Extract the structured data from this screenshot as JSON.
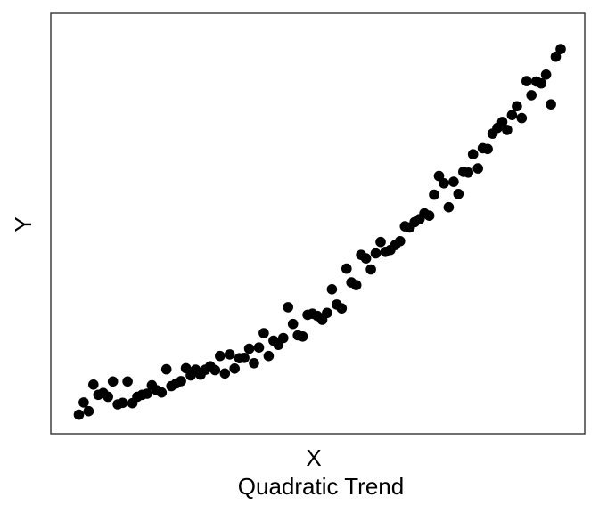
{
  "chart_data": {
    "type": "scatter",
    "title": "",
    "caption": "Quadratic Trend",
    "xlabel": "X",
    "ylabel": "Y",
    "xlim": [
      0,
      100
    ],
    "ylim": [
      0,
      100
    ],
    "grid": false,
    "legend": "none",
    "marker_color": "#000000",
    "series": [
      {
        "x": [
          1,
          2,
          3,
          4,
          5,
          6,
          7,
          8,
          9,
          10,
          11,
          12,
          13,
          14,
          15,
          16,
          17,
          18,
          19,
          20,
          21,
          22,
          23,
          24,
          25,
          26,
          27,
          28,
          29,
          30,
          31,
          32,
          33,
          34,
          35,
          36,
          37,
          38,
          39,
          40,
          41,
          42,
          43,
          44,
          45,
          46,
          47,
          48,
          49,
          50,
          51,
          52,
          53,
          54,
          55,
          56,
          57,
          58,
          59,
          60,
          61,
          62,
          63,
          64,
          65,
          66,
          67,
          68,
          69,
          70,
          71,
          72,
          73,
          74,
          75,
          76,
          77,
          78,
          79,
          80,
          81,
          82,
          83,
          84,
          85,
          86,
          87,
          88,
          89,
          90,
          91,
          92,
          93,
          94,
          95,
          96,
          97,
          98,
          99,
          100
        ],
        "y": [
          0.1,
          3.3,
          1.0,
          8.0,
          5.3,
          5.8,
          4.8,
          8.8,
          2.8,
          3.2,
          8.8,
          3.1,
          4.8,
          5.3,
          5.6,
          7.8,
          6.5,
          5.9,
          12.0,
          7.6,
          8.3,
          8.9,
          12.3,
          10.4,
          11.9,
          10.6,
          11.9,
          12.8,
          11.8,
          15.5,
          10.9,
          15.9,
          12.2,
          14.9,
          15.0,
          17.4,
          13.6,
          17.7,
          21.5,
          15.5,
          19.5,
          18.4,
          20.2,
          28.3,
          23.9,
          20.9,
          20.6,
          26.3,
          26.6,
          26.0,
          25.0,
          26.8,
          33.0,
          29.0,
          28.0,
          38.4,
          34.8,
          34.1,
          42.0,
          41.1,
          38.2,
          42.4,
          45.4,
          42.8,
          43.3,
          44.6,
          45.6,
          49.5,
          49.2,
          50.6,
          51.4,
          52.9,
          52.3,
          57.8,
          62.7,
          60.8,
          54.5,
          61.2,
          58.0,
          63.8,
          63.6,
          68.4,
          64.7,
          70.0,
          69.8,
          73.8,
          75.3,
          76.9,
          74.8,
          78.7,
          81.0,
          77.9,
          87.6,
          83.9,
          87.5,
          87.0,
          89.3,
          81.5,
          94.0,
          96.0
        ]
      }
    ]
  }
}
